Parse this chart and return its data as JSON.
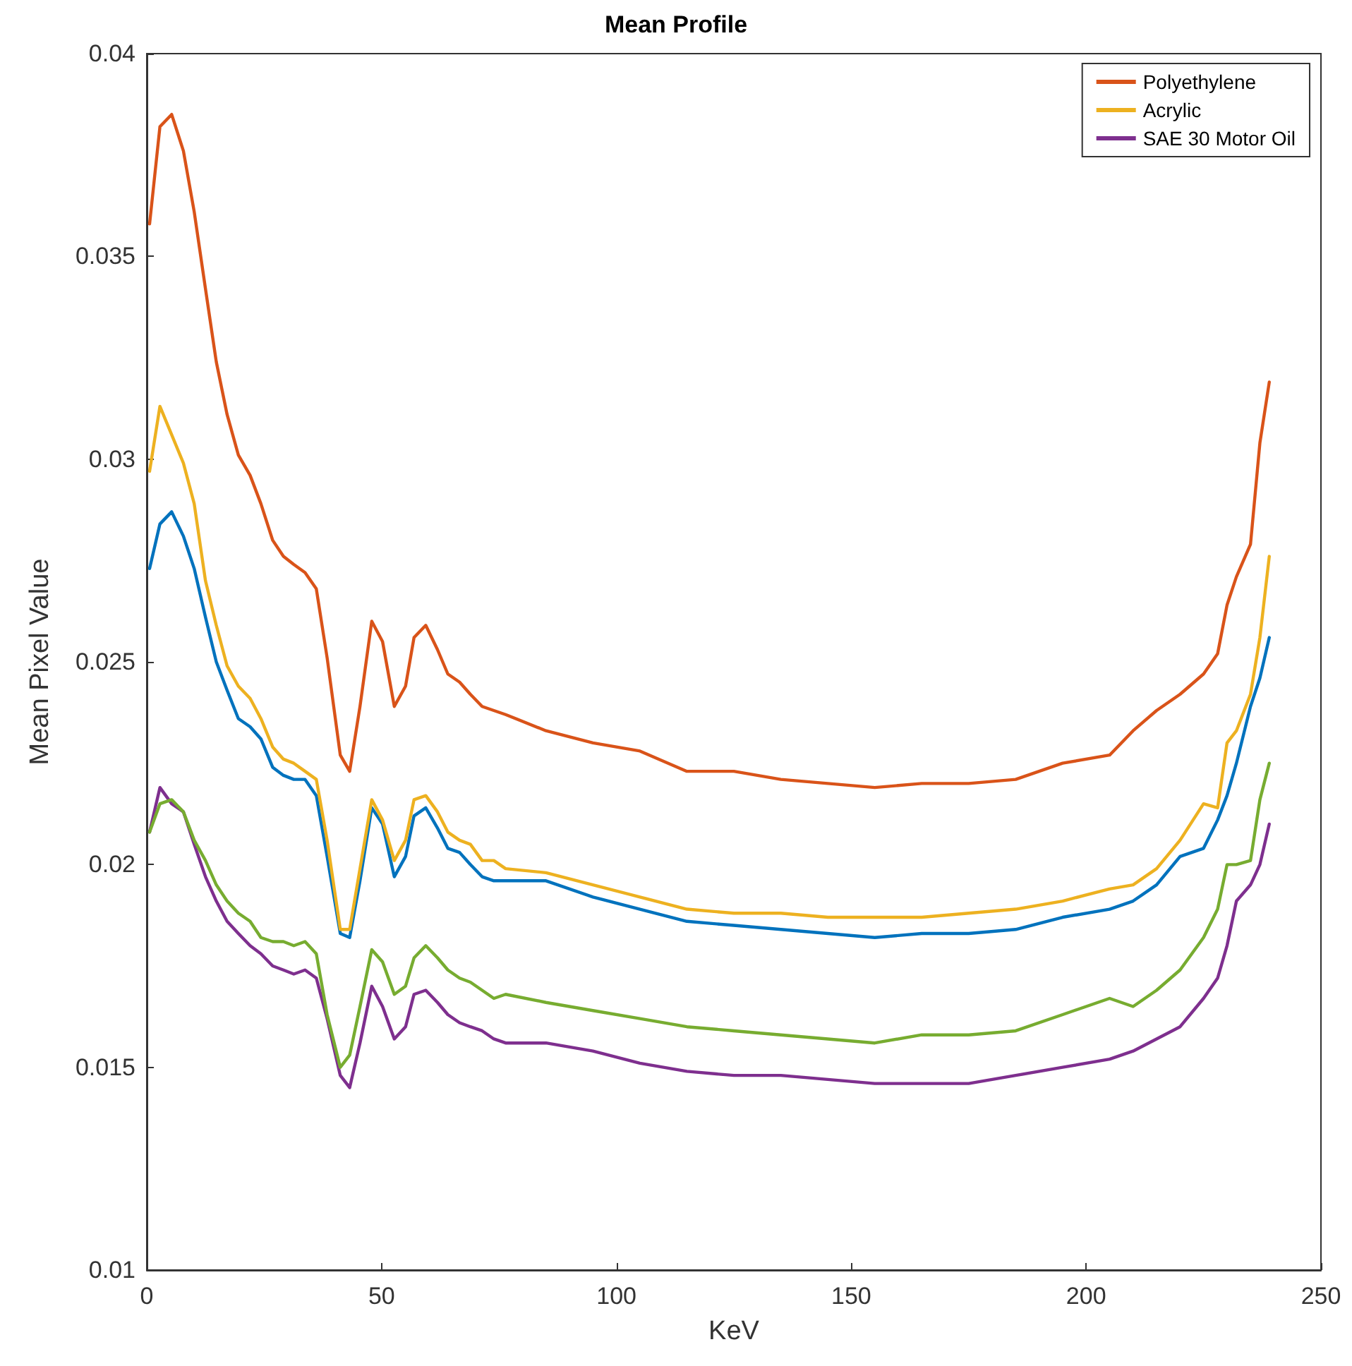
{
  "chart_data": {
    "type": "line",
    "title": "Mean Profile",
    "xlabel": "KeV",
    "ylabel": "Mean Pixel Value",
    "x": [
      0.6,
      2.8,
      5.3,
      7.8,
      10.1,
      12.5,
      14.8,
      17.1,
      19.5,
      22.0,
      24.3,
      26.8,
      29.1,
      31.3,
      33.7,
      36.1,
      38.4,
      41.2,
      43.2,
      45.4,
      47.9,
      50.2,
      52.7,
      55.1,
      56.9,
      59.4,
      61.9,
      64.1,
      66.6,
      68.9,
      71.4,
      73.9,
      76.4,
      85,
      95,
      105,
      115,
      125,
      135,
      145,
      155,
      165,
      175,
      185,
      195,
      205,
      210,
      215,
      220,
      225,
      228,
      230,
      232,
      235,
      237,
      239
    ],
    "series": [
      {
        "color": "#0072bd",
        "values": [
          0.0273,
          0.0284,
          0.0287,
          0.0281,
          0.0273,
          0.0261,
          0.025,
          0.0243,
          0.0236,
          0.0234,
          0.0231,
          0.0224,
          0.0222,
          0.0221,
          0.0221,
          0.0217,
          0.0202,
          0.0183,
          0.0182,
          0.0196,
          0.0214,
          0.021,
          0.0197,
          0.0202,
          0.0212,
          0.0214,
          0.0209,
          0.0204,
          0.0203,
          0.02,
          0.0197,
          0.0196,
          0.0196,
          0.0196,
          0.0192,
          0.0189,
          0.0186,
          0.0185,
          0.0184,
          0.0183,
          0.0182,
          0.0183,
          0.0183,
          0.0184,
          0.0187,
          0.0189,
          0.0191,
          0.0195,
          0.0202,
          0.0204,
          0.0211,
          0.0217,
          0.0225,
          0.0239,
          0.0246,
          0.0256
        ]
      },
      {
        "name": "Polyethylene",
        "color": "#d95319",
        "values": [
          0.0358,
          0.0382,
          0.0385,
          0.0376,
          0.0361,
          0.0342,
          0.0324,
          0.0311,
          0.0301,
          0.0296,
          0.0289,
          0.028,
          0.0276,
          0.0274,
          0.0272,
          0.0268,
          0.0251,
          0.0227,
          0.0223,
          0.0239,
          0.026,
          0.0255,
          0.0239,
          0.0244,
          0.0256,
          0.0259,
          0.0253,
          0.0247,
          0.0245,
          0.0242,
          0.0239,
          0.0238,
          0.0237,
          0.0233,
          0.023,
          0.0228,
          0.0223,
          0.0223,
          0.0221,
          0.022,
          0.0219,
          0.022,
          0.022,
          0.0221,
          0.0225,
          0.0227,
          0.0233,
          0.0238,
          0.0242,
          0.0247,
          0.0252,
          0.0264,
          0.0271,
          0.0279,
          0.0304,
          0.0319
        ]
      },
      {
        "name": "Acrylic",
        "color": "#edb120",
        "values": [
          0.0297,
          0.0313,
          0.0306,
          0.0299,
          0.0289,
          0.027,
          0.0259,
          0.0249,
          0.0244,
          0.0241,
          0.0236,
          0.0229,
          0.0226,
          0.0225,
          0.0223,
          0.0221,
          0.0206,
          0.0184,
          0.0184,
          0.0199,
          0.0216,
          0.0211,
          0.0201,
          0.0206,
          0.0216,
          0.0217,
          0.0213,
          0.0208,
          0.0206,
          0.0205,
          0.0201,
          0.0201,
          0.0199,
          0.0198,
          0.0195,
          0.0192,
          0.0189,
          0.0188,
          0.0188,
          0.0187,
          0.0187,
          0.0187,
          0.0188,
          0.0189,
          0.0191,
          0.0194,
          0.0195,
          0.0199,
          0.0206,
          0.0215,
          0.0214,
          0.023,
          0.0233,
          0.0242,
          0.0256,
          0.0276
        ]
      },
      {
        "name": "SAE 30 Motor Oil",
        "color": "#7e2f8e",
        "values": [
          0.0208,
          0.0219,
          0.0215,
          0.0213,
          0.0205,
          0.0197,
          0.0191,
          0.0186,
          0.0183,
          0.018,
          0.0178,
          0.0175,
          0.0174,
          0.0173,
          0.0174,
          0.0172,
          0.0162,
          0.0148,
          0.0145,
          0.0156,
          0.017,
          0.0165,
          0.0157,
          0.016,
          0.0168,
          0.0169,
          0.0166,
          0.0163,
          0.0161,
          0.016,
          0.0159,
          0.0157,
          0.0156,
          0.0156,
          0.0154,
          0.0151,
          0.0149,
          0.0148,
          0.0148,
          0.0147,
          0.0146,
          0.0146,
          0.0146,
          0.0148,
          0.015,
          0.0152,
          0.0154,
          0.0157,
          0.016,
          0.0167,
          0.0172,
          0.018,
          0.0191,
          0.0195,
          0.02,
          0.021
        ]
      },
      {
        "color": "#77ac30",
        "values": [
          0.0208,
          0.0215,
          0.0216,
          0.0213,
          0.0206,
          0.0201,
          0.0195,
          0.0191,
          0.0188,
          0.0186,
          0.0182,
          0.0181,
          0.0181,
          0.018,
          0.0181,
          0.0178,
          0.0163,
          0.015,
          0.0153,
          0.0165,
          0.0179,
          0.0176,
          0.0168,
          0.017,
          0.0177,
          0.018,
          0.0177,
          0.0174,
          0.0172,
          0.0171,
          0.0169,
          0.0167,
          0.0168,
          0.0166,
          0.0164,
          0.0162,
          0.016,
          0.0159,
          0.0158,
          0.0157,
          0.0156,
          0.0158,
          0.0158,
          0.0159,
          0.0163,
          0.0167,
          0.0165,
          0.0169,
          0.0174,
          0.0182,
          0.0189,
          0.02,
          0.02,
          0.0201,
          0.0216,
          0.0225
        ]
      }
    ],
    "xlim": [
      0,
      250
    ],
    "xticks": [
      0,
      50,
      100,
      150,
      200,
      250
    ],
    "ylim": [
      0.01,
      0.04
    ],
    "yticks": [
      0.01,
      0.015,
      0.02,
      0.025,
      0.03,
      0.035,
      0.04
    ],
    "grid": false,
    "legend": "top right",
    "marker": "none",
    "line_style": "solid"
  }
}
